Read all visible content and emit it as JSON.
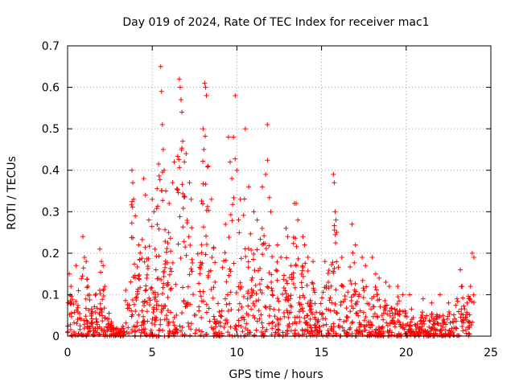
{
  "chart_data": {
    "type": "scatter",
    "title": "Day 019 of 2024, Rate Of TEC Index for receiver mac1",
    "xlabel": "GPS time / hours",
    "ylabel": "ROTI / TECUs",
    "xlim": [
      0,
      25
    ],
    "ylim": [
      0,
      0.7
    ],
    "xticks": [
      0,
      5,
      10,
      15,
      20,
      25
    ],
    "yticks": [
      0,
      0.1,
      0.2,
      0.3,
      0.4,
      0.5,
      0.6,
      0.7
    ],
    "xtick_labels": [
      "0",
      "5",
      "10",
      "15",
      "20",
      "25"
    ],
    "ytick_labels": [
      "0",
      "0.1",
      "0.2",
      "0.3",
      "0.4",
      "0.5",
      "0.6",
      "0.7"
    ],
    "grid": true,
    "marker": "plus",
    "color": "#ff0000",
    "series": [
      {
        "points": [
          [
            0.1,
            0.15
          ],
          [
            0.2,
            0.12
          ],
          [
            0.5,
            0.17
          ],
          [
            0.9,
            0.24
          ],
          [
            1.0,
            0.19
          ],
          [
            1.1,
            0.18
          ],
          [
            1.2,
            0.12
          ],
          [
            1.9,
            0.21
          ],
          [
            2.0,
            0.18
          ],
          [
            2.1,
            0.17
          ],
          [
            2.2,
            0.12
          ],
          [
            3.8,
            0.4
          ],
          [
            3.85,
            0.37
          ],
          [
            3.9,
            0.33
          ],
          [
            4.0,
            0.29
          ],
          [
            4.2,
            0.22
          ],
          [
            4.5,
            0.38
          ],
          [
            4.6,
            0.34
          ],
          [
            4.8,
            0.28
          ],
          [
            5.0,
            0.33
          ],
          [
            5.1,
            0.3
          ],
          [
            5.5,
            0.65
          ],
          [
            5.55,
            0.59
          ],
          [
            5.6,
            0.51
          ],
          [
            5.65,
            0.45
          ],
          [
            5.7,
            0.4
          ],
          [
            5.8,
            0.35
          ],
          [
            6.0,
            0.32
          ],
          [
            6.2,
            0.37
          ],
          [
            6.3,
            0.42
          ],
          [
            6.6,
            0.62
          ],
          [
            6.65,
            0.6
          ],
          [
            6.7,
            0.57
          ],
          [
            6.75,
            0.54
          ],
          [
            6.8,
            0.47
          ],
          [
            6.9,
            0.42
          ],
          [
            7.0,
            0.44
          ],
          [
            7.2,
            0.37
          ],
          [
            7.3,
            0.33
          ],
          [
            8.1,
            0.61
          ],
          [
            8.15,
            0.6
          ],
          [
            8.2,
            0.58
          ],
          [
            8.0,
            0.5
          ],
          [
            8.05,
            0.45
          ],
          [
            8.3,
            0.41
          ],
          [
            8.5,
            0.33
          ],
          [
            9.5,
            0.48
          ],
          [
            9.6,
            0.42
          ],
          [
            9.7,
            0.38
          ],
          [
            9.8,
            0.48
          ],
          [
            9.9,
            0.58
          ],
          [
            10.0,
            0.4
          ],
          [
            10.2,
            0.33
          ],
          [
            10.5,
            0.5
          ],
          [
            10.7,
            0.36
          ],
          [
            11.0,
            0.3
          ],
          [
            11.2,
            0.28
          ],
          [
            11.5,
            0.36
          ],
          [
            11.7,
            0.39
          ],
          [
            11.8,
            0.51
          ],
          [
            12.0,
            0.3
          ],
          [
            12.4,
            0.22
          ],
          [
            12.6,
            0.19
          ],
          [
            12.9,
            0.26
          ],
          [
            13.0,
            0.24
          ],
          [
            13.4,
            0.32
          ],
          [
            13.5,
            0.32
          ],
          [
            13.6,
            0.28
          ],
          [
            13.9,
            0.24
          ],
          [
            14.0,
            0.22
          ],
          [
            14.2,
            0.19
          ],
          [
            14.5,
            0.18
          ],
          [
            15.2,
            0.18
          ],
          [
            15.4,
            0.13
          ],
          [
            15.7,
            0.39
          ],
          [
            15.75,
            0.37
          ],
          [
            15.8,
            0.3
          ],
          [
            15.85,
            0.28
          ],
          [
            15.9,
            0.25
          ],
          [
            16.2,
            0.19
          ],
          [
            16.8,
            0.27
          ],
          [
            17.0,
            0.22
          ],
          [
            17.4,
            0.19
          ],
          [
            17.6,
            0.17
          ],
          [
            18.0,
            0.19
          ],
          [
            18.2,
            0.15
          ],
          [
            18.4,
            0.14
          ],
          [
            18.8,
            0.13
          ],
          [
            19.0,
            0.12
          ],
          [
            19.5,
            0.12
          ],
          [
            19.8,
            0.1
          ],
          [
            20.2,
            0.1
          ],
          [
            21.0,
            0.09
          ],
          [
            21.5,
            0.08
          ],
          [
            22.0,
            0.1
          ],
          [
            22.5,
            0.08
          ],
          [
            23.0,
            0.09
          ],
          [
            23.2,
            0.16
          ],
          [
            23.3,
            0.12
          ],
          [
            23.6,
            0.08
          ],
          [
            23.8,
            0.12
          ],
          [
            23.9,
            0.2
          ],
          [
            24.0,
            0.19
          ]
        ]
      }
    ]
  }
}
